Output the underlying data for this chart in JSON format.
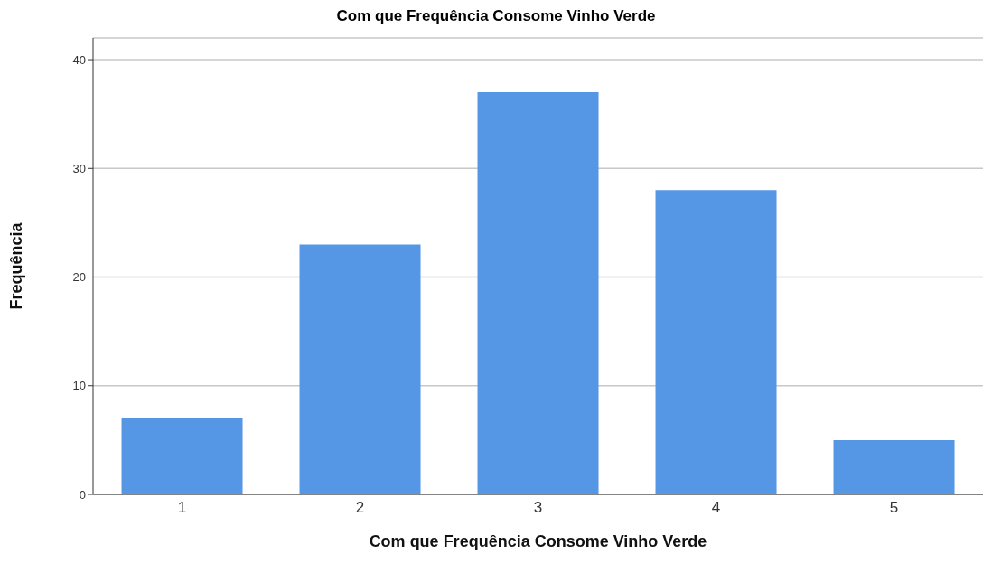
{
  "chart_data": {
    "type": "bar",
    "title": "Com que Frequência Consome Vinho Verde",
    "xlabel": "Com que Frequência Consome Vinho Verde",
    "ylabel": "Frequência",
    "categories": [
      "1",
      "2",
      "3",
      "4",
      "5"
    ],
    "values": [
      7,
      23,
      37,
      28,
      5
    ],
    "color": "#5596e5",
    "ylim": [
      0,
      42
    ],
    "yticks": [
      0,
      10,
      20,
      30,
      40
    ],
    "grid": "y"
  }
}
